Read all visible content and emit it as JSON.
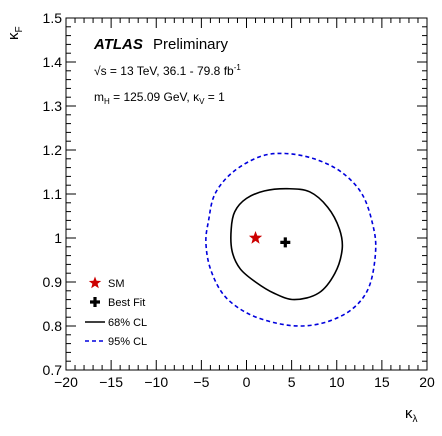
{
  "chart_data": {
    "type": "scatter",
    "x_label_main": "κ",
    "x_label_sub": "λ",
    "y_label_main": "κ",
    "y_label_sub": "F",
    "xlim": [
      -20,
      20
    ],
    "ylim": [
      0.7,
      1.5
    ],
    "x_ticks": [
      -20,
      -15,
      -10,
      -5,
      0,
      5,
      10,
      15,
      20
    ],
    "x_tick_labels": [
      "−20",
      "−15",
      "−10",
      "−5",
      "0",
      "5",
      "10",
      "15",
      "20"
    ],
    "y_ticks": [
      0.7,
      0.8,
      0.9,
      1.0,
      1.1,
      1.2,
      1.3,
      1.4,
      1.5
    ],
    "y_tick_labels": [
      "0.7",
      "0.8",
      "0.9",
      "1",
      "1.1",
      "1.2",
      "1.3",
      "1.4",
      "1.5"
    ],
    "grid": false,
    "annotations": {
      "atlas": "ATLAS",
      "preliminary": "Preliminary",
      "sqrt": "√",
      "energy_line": "s = 13 TeV, 36.1 - 79.8 fb",
      "energy_sup": "-1",
      "mass_m": "m",
      "mass_sub": "H",
      "mass_rest": " = 125.09 GeV, κ",
      "kv_sub": "V",
      "kv_rest": " = 1"
    },
    "legend_placement": "bottom-left",
    "legend": [
      {
        "label": "SM",
        "marker": "star",
        "color": "#cc0000"
      },
      {
        "label": "Best Fit",
        "marker": "cross",
        "color": "#000000"
      },
      {
        "label": "68% CL",
        "marker": "solid-line",
        "color": "#000000"
      },
      {
        "label": "95% CL",
        "marker": "dashed-line",
        "color": "#0000dd"
      }
    ],
    "points": {
      "sm": {
        "x": 1.0,
        "y": 1.0
      },
      "best_fit": {
        "x": 4.3,
        "y": 0.99
      }
    },
    "contours": {
      "cl68": [
        [
          -1.7,
          1.02
        ],
        [
          -1.3,
          1.06
        ],
        [
          0.0,
          1.09
        ],
        [
          2.0,
          1.107
        ],
        [
          4.5,
          1.112
        ],
        [
          7.0,
          1.105
        ],
        [
          9.0,
          1.07
        ],
        [
          10.3,
          1.02
        ],
        [
          10.6,
          0.975
        ],
        [
          9.8,
          0.92
        ],
        [
          8.0,
          0.875
        ],
        [
          5.3,
          0.86
        ],
        [
          3.0,
          0.875
        ],
        [
          1.0,
          0.9
        ],
        [
          -0.7,
          0.93
        ],
        [
          -1.6,
          0.97
        ],
        [
          -1.7,
          1.02
        ]
      ],
      "cl95": [
        [
          -4.2,
          1.04
        ],
        [
          -3.5,
          1.1
        ],
        [
          -1.5,
          1.15
        ],
        [
          1.5,
          1.185
        ],
        [
          4.3,
          1.192
        ],
        [
          7.5,
          1.18
        ],
        [
          10.5,
          1.15
        ],
        [
          12.8,
          1.1
        ],
        [
          14.0,
          1.03
        ],
        [
          14.3,
          0.97
        ],
        [
          13.6,
          0.89
        ],
        [
          11.8,
          0.84
        ],
        [
          9.0,
          0.81
        ],
        [
          6.0,
          0.8
        ],
        [
          3.0,
          0.808
        ],
        [
          0.0,
          0.83
        ],
        [
          -2.5,
          0.87
        ],
        [
          -4.0,
          0.93
        ],
        [
          -4.5,
          0.99
        ],
        [
          -4.2,
          1.04
        ]
      ]
    }
  }
}
